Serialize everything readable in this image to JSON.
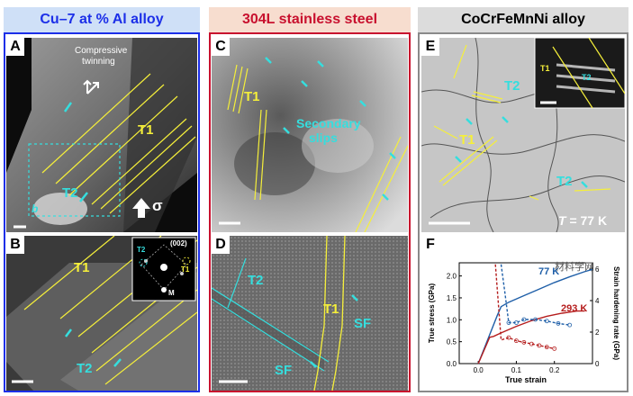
{
  "columns": [
    {
      "title": "Cu–7 at % Al alloy",
      "color": "#1c2fe8",
      "bg": "#cfe0f7"
    },
    {
      "title": "304L stainless steel",
      "color": "#c8102e",
      "bg": "#f7ddcf"
    },
    {
      "title": "CoCrFeMnNi alloy",
      "color": "#000000",
      "bg": "#dcdcdc"
    }
  ],
  "panels": {
    "A": {
      "label": "A",
      "text_compressive": "Compressive",
      "text_twinning": "twinning",
      "t1": "T1",
      "t2": "T2",
      "sigma": "σ",
      "inset": "b"
    },
    "B": {
      "label": "B",
      "t1": "T1",
      "t2": "T2",
      "inset_t1": "T1",
      "inset_t2": "T2",
      "inset_m": "M",
      "inset_index": "(002)"
    },
    "C": {
      "label": "C",
      "t1": "T1",
      "secondary_1": "Secondary",
      "secondary_2": "slips"
    },
    "D": {
      "label": "D",
      "t1": "T1",
      "t2": "T2",
      "sf_right": "SF",
      "sf_left": "SF"
    },
    "E": {
      "label": "E",
      "t1": "T1",
      "t2a": "T2",
      "t2b": "T2",
      "inset_t1": "T1",
      "inset_t2": "T2",
      "temp_symbol": "T",
      "temp_value": " = 77 K"
    },
    "F": {
      "label": "F",
      "watermark": "材料学网"
    }
  },
  "chart_data": {
    "type": "line",
    "title": "",
    "xlabel": "True strain",
    "ylabel": "True stress (GPa)",
    "y2label": "Strain hardening rate (GPa)",
    "xlim": [
      -0.05,
      0.3
    ],
    "ylim": [
      0,
      2.3
    ],
    "y2lim": [
      0,
      6.4
    ],
    "xticks": [
      "0.0",
      "0.1",
      "0.2"
    ],
    "yticks": [
      "0.0",
      "0.5",
      "1.0",
      "1.5",
      "2.0"
    ],
    "y2ticks": [
      "0",
      "2",
      "4",
      "6"
    ],
    "series": [
      {
        "name": "77 K",
        "color": "#1f5fa8",
        "kind": "stress",
        "x": [
          0.0,
          0.05,
          0.06,
          0.08,
          0.12,
          0.16,
          0.2,
          0.24,
          0.28,
          0.3
        ],
        "y": [
          0.0,
          1.1,
          1.3,
          1.4,
          1.55,
          1.7,
          1.85,
          1.98,
          2.1,
          2.15
        ]
      },
      {
        "name": "293 K",
        "color": "#b51d1d",
        "kind": "stress",
        "x": [
          0.0,
          0.03,
          0.04,
          0.06,
          0.1,
          0.14,
          0.18,
          0.22,
          0.26,
          0.28
        ],
        "y": [
          0.0,
          0.6,
          0.62,
          0.7,
          0.85,
          0.98,
          1.08,
          1.15,
          1.2,
          1.2
        ]
      },
      {
        "name": "77 K hardening",
        "color": "#1f5fa8",
        "kind": "hardening",
        "x": [
          0.06,
          0.07,
          0.08,
          0.1,
          0.12,
          0.15,
          0.18,
          0.21,
          0.24
        ],
        "y": [
          6.3,
          4.5,
          2.6,
          2.6,
          2.8,
          2.8,
          2.7,
          2.55,
          2.45
        ]
      },
      {
        "name": "293 K hardening",
        "color": "#b51d1d",
        "kind": "hardening",
        "x": [
          0.045,
          0.06,
          0.08,
          0.1,
          0.12,
          0.14,
          0.16,
          0.18,
          0.2
        ],
        "y": [
          6.3,
          1.5,
          1.65,
          1.45,
          1.35,
          1.25,
          1.15,
          1.05,
          0.95
        ]
      }
    ],
    "annotations": [
      {
        "text": "77 K",
        "color": "#1f5fa8"
      },
      {
        "text": "293 K",
        "color": "#b51d1d"
      }
    ]
  }
}
